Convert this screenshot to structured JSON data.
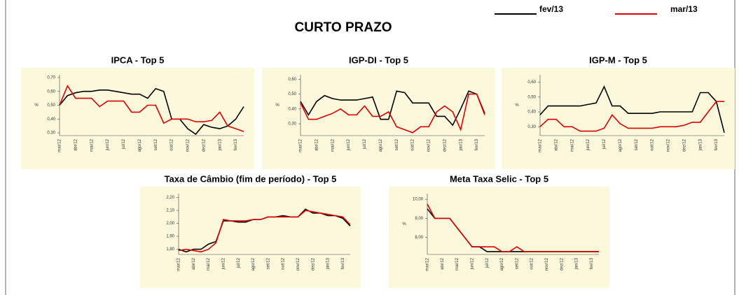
{
  "title": "CURTO PRAZO",
  "chart_data": [
    {
      "type": "line",
      "title": "IPCA - Top 5",
      "ylabel": "%",
      "categories": [
        "mar/12",
        null,
        "abr/12",
        null,
        "mai/12",
        null,
        "jun/12",
        null,
        "jul/12",
        null,
        "ago/12",
        null,
        "set/12",
        null,
        "out/12",
        null,
        "nov/12",
        null,
        "dez/12",
        null,
        "jan/13",
        null,
        "fev/13",
        null
      ],
      "series": [
        {
          "name": "fev/13",
          "color": "#000000",
          "values": [
            0.5,
            0.57,
            0.59,
            0.6,
            0.6,
            0.61,
            0.61,
            0.6,
            0.59,
            0.58,
            0.58,
            0.55,
            0.62,
            0.6,
            0.4,
            0.4,
            0.33,
            0.29,
            0.36,
            0.34,
            0.33,
            0.35,
            0.4,
            0.49
          ]
        },
        {
          "name": "mar/13",
          "color": "#e00000",
          "values": [
            0.5,
            0.64,
            0.55,
            0.55,
            0.55,
            0.49,
            0.53,
            0.53,
            0.53,
            0.45,
            0.45,
            0.5,
            0.5,
            0.37,
            0.4,
            0.4,
            0.4,
            0.38,
            0.38,
            0.39,
            0.45,
            0.35,
            0.33,
            0.31
          ]
        }
      ],
      "ylim": [
        0.28,
        0.72
      ],
      "yticks": [
        {
          "value": 0.3,
          "label": "0,30"
        },
        {
          "value": 0.4,
          "label": "0,40"
        },
        {
          "value": 0.5,
          "label": "0,50"
        },
        {
          "value": 0.6,
          "label": "0,60"
        },
        {
          "value": 0.7,
          "label": "0,70"
        }
      ]
    },
    {
      "type": "line",
      "title": "IGP-DI - Top 5",
      "ylabel": "%",
      "categories": [
        "mar/12",
        null,
        "abr/12",
        null,
        "mai/12",
        null,
        "jun/12",
        null,
        "jul/12",
        null,
        "ago/12",
        null,
        "set/12",
        null,
        "out/12",
        null,
        "nov/12",
        null,
        "dez/12",
        null,
        "jan/13",
        null,
        "fev/13",
        null
      ],
      "series": [
        {
          "name": "fev/13",
          "color": "#000000",
          "values": [
            0.45,
            0.36,
            0.45,
            0.49,
            0.47,
            0.46,
            0.46,
            0.46,
            0.47,
            0.48,
            0.33,
            0.33,
            0.52,
            0.51,
            0.44,
            0.44,
            0.44,
            0.35,
            0.35,
            0.29,
            0.4,
            0.52,
            0.5,
            0.37
          ]
        },
        {
          "name": "mar/13",
          "color": "#e00000",
          "values": [
            0.44,
            0.33,
            0.33,
            0.35,
            0.37,
            0.4,
            0.36,
            0.36,
            0.42,
            0.35,
            0.35,
            0.38,
            0.28,
            0.26,
            0.24,
            0.28,
            0.28,
            0.38,
            0.42,
            0.38,
            0.26,
            0.5,
            0.5,
            0.36
          ]
        }
      ],
      "ylim": [
        0.22,
        0.63
      ],
      "yticks": [
        {
          "value": 0.3,
          "label": "0,30"
        },
        {
          "value": 0.4,
          "label": "0,40"
        },
        {
          "value": 0.5,
          "label": "0,50"
        },
        {
          "value": 0.6,
          "label": "0,60"
        }
      ]
    },
    {
      "type": "line",
      "title": "IGP-M - Top 5",
      "ylabel": "%",
      "categories": [
        "mar/12",
        null,
        "abr/12",
        null,
        "mai/12",
        null,
        "jun/12",
        null,
        "jul/12",
        null,
        "ago/12",
        null,
        "set/12",
        null,
        "out/12",
        null,
        "nov/12",
        null,
        "dez/12",
        null,
        "jan/13",
        null,
        "fev/13",
        null
      ],
      "series": [
        {
          "name": "fev/13",
          "color": "#000000",
          "values": [
            0.38,
            0.44,
            0.44,
            0.44,
            0.44,
            0.44,
            0.45,
            0.46,
            0.57,
            0.44,
            0.44,
            0.39,
            0.39,
            0.39,
            0.39,
            0.4,
            0.4,
            0.4,
            0.4,
            0.4,
            0.53,
            0.53,
            0.47,
            0.26
          ]
        },
        {
          "name": "mar/13",
          "color": "#e00000",
          "values": [
            0.3,
            0.35,
            0.35,
            0.3,
            0.3,
            0.27,
            0.27,
            0.27,
            0.29,
            0.38,
            0.32,
            0.29,
            0.29,
            0.29,
            0.29,
            0.3,
            0.3,
            0.3,
            0.31,
            0.33,
            0.33,
            0.4,
            0.47,
            0.47
          ]
        }
      ],
      "ylim": [
        0.24,
        0.65
      ],
      "yticks": [
        {
          "value": 0.3,
          "label": "0,30"
        },
        {
          "value": 0.4,
          "label": "0,40"
        },
        {
          "value": 0.5,
          "label": "0,50"
        },
        {
          "value": 0.6,
          "label": "0,60"
        }
      ]
    },
    {
      "type": "line",
      "title": "Taxa de Câmbio (fim de período) - Top 5",
      "categories": [
        "mar/12",
        null,
        "abr/12",
        null,
        "mai/12",
        null,
        "jun/12",
        null,
        "jul/12",
        null,
        "ago/12",
        null,
        "set/12",
        null,
        "out/12",
        null,
        "nov/12",
        null,
        "dez/12",
        null,
        "jan/13",
        null,
        "fev/13",
        null
      ],
      "series": [
        {
          "name": "fev/13",
          "color": "#000000",
          "values": [
            1.8,
            1.78,
            1.8,
            1.8,
            1.84,
            1.86,
            2.02,
            2.02,
            2.01,
            2.01,
            2.03,
            2.03,
            2.05,
            2.05,
            2.06,
            2.05,
            2.05,
            2.11,
            2.08,
            2.08,
            2.06,
            2.06,
            2.04,
            1.98
          ]
        },
        {
          "name": "mar/13",
          "color": "#e00000",
          "values": [
            1.79,
            1.8,
            1.79,
            1.78,
            1.8,
            1.85,
            2.03,
            2.02,
            2.02,
            2.02,
            2.03,
            2.03,
            2.05,
            2.05,
            2.05,
            2.05,
            2.05,
            2.1,
            2.09,
            2.08,
            2.07,
            2.06,
            2.05,
            1.99
          ]
        }
      ],
      "ylim": [
        1.76,
        2.23
      ],
      "yticks": [
        {
          "value": 1.8,
          "label": "1,80"
        },
        {
          "value": 1.9,
          "label": "1,90"
        },
        {
          "value": 2.0,
          "label": "2,00"
        },
        {
          "value": 2.1,
          "label": "2,10"
        },
        {
          "value": 2.2,
          "label": "2,20"
        }
      ]
    },
    {
      "type": "line",
      "title": "Meta Taxa Selic - Top 5",
      "ylabel": "%",
      "categories": [
        "mar/12",
        null,
        "abr/12",
        null,
        "mai/12",
        null,
        "jun/12",
        null,
        "jul/12",
        null,
        "ago/12",
        null,
        "set/12",
        null,
        "out/12",
        null,
        "nov/12",
        null,
        "dez/12",
        null,
        "jan/13",
        null,
        "fev/13",
        null
      ],
      "series": [
        {
          "name": "fev/13",
          "color": "#000000",
          "values": [
            9.5,
            9.0,
            9.0,
            9.0,
            8.5,
            8.0,
            7.5,
            7.5,
            7.25,
            7.25,
            7.25,
            7.25,
            7.25,
            7.25,
            7.25,
            7.25,
            7.25,
            7.25,
            7.25,
            7.25,
            7.25,
            7.25,
            7.25,
            7.25
          ]
        },
        {
          "name": "mar/13",
          "color": "#e00000",
          "values": [
            9.75,
            9.0,
            9.0,
            9.0,
            8.5,
            8.0,
            7.5,
            7.5,
            7.5,
            7.5,
            7.25,
            7.25,
            7.5,
            7.25,
            7.25,
            7.25,
            7.25,
            7.25,
            7.25,
            7.25,
            7.25,
            7.25,
            7.25,
            7.25
          ]
        }
      ],
      "ylim": [
        7.1,
        10.3
      ],
      "yticks": [
        {
          "value": 8,
          "label": "8,00"
        },
        {
          "value": 9,
          "label": "9,00"
        },
        {
          "value": 10,
          "label": "10,00"
        }
      ]
    }
  ]
}
